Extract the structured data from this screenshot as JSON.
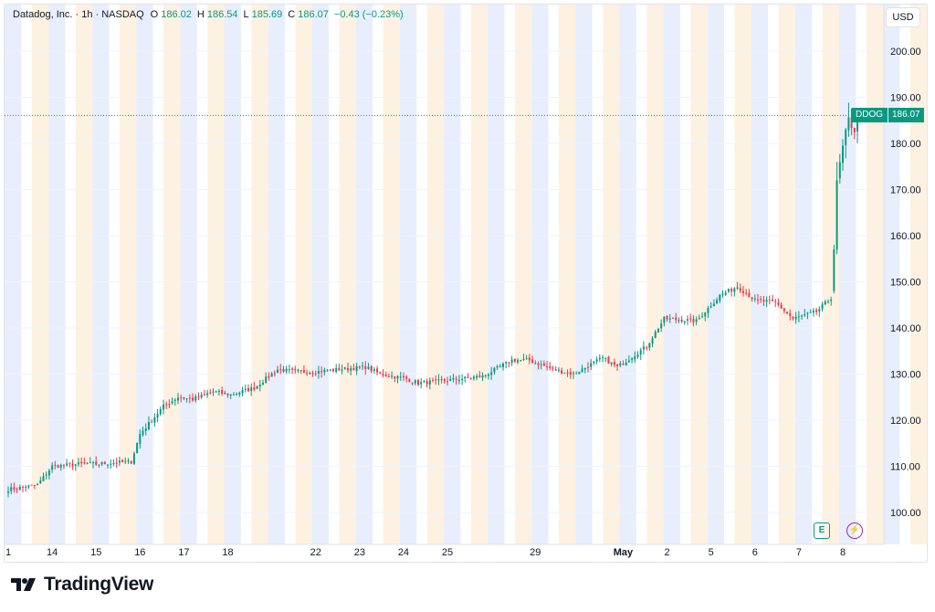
{
  "legend": {
    "title": "Datadog, Inc. · 1h · NASDAQ",
    "o_label": "O",
    "o_value": "186.02",
    "h_label": "H",
    "h_value": "186.54",
    "l_label": "L",
    "l_value": "185.69",
    "c_label": "C",
    "c_value": "186.07",
    "change": "−0.43 (−0.23%)"
  },
  "currency": "USD",
  "last_price": {
    "symbol": "DDOG",
    "value": "186.07",
    "price": 186.07
  },
  "markers": {
    "earnings_glyph": "E",
    "dividend_glyph": "⚡",
    "earnings_icon": "earnings-icon",
    "event_icon": "lightning-icon"
  },
  "brand": {
    "name": "TradingView",
    "logo_icon": "tradingview-logo-icon"
  },
  "colors": {
    "up": "#089981",
    "down": "#f23645",
    "pre_market_band": "#e8eefc",
    "post_market_band": "#fdf1e2",
    "grid": "#f0f3fa"
  },
  "chart_data": {
    "type": "candlestick",
    "title": "Datadog, Inc. · 1h · NASDAQ",
    "ylim": [
      93,
      210
    ],
    "y_ticks": [
      100,
      110,
      120,
      130,
      140,
      150,
      160,
      170,
      180,
      190,
      200
    ],
    "y_tick_labels": [
      "100.00",
      "110.00",
      "120.00",
      "130.00",
      "140.00",
      "150.00",
      "160.00",
      "170.00",
      "180.00",
      "190.00",
      "200.00"
    ],
    "x_labels": [
      "1",
      "14",
      "15",
      "16",
      "17",
      "18",
      "22",
      "23",
      "24",
      "25",
      "29",
      "May",
      "2",
      "5",
      "6",
      "7",
      "8"
    ],
    "x_label_index": [
      0,
      15,
      30,
      45,
      60,
      75,
      105,
      120,
      135,
      150,
      180,
      210,
      225,
      240,
      255,
      270,
      285
    ],
    "total_bars": 292,
    "grid": true,
    "anchor_closes": [
      [
        0,
        105
      ],
      [
        6,
        105.5
      ],
      [
        10,
        106
      ],
      [
        15,
        110
      ],
      [
        25,
        110.5
      ],
      [
        30,
        110.5
      ],
      [
        42,
        111
      ],
      [
        45,
        117
      ],
      [
        53,
        123
      ],
      [
        58,
        125
      ],
      [
        63,
        124.5
      ],
      [
        70,
        126.2
      ],
      [
        76,
        125.5
      ],
      [
        84,
        127
      ],
      [
        92,
        131
      ],
      [
        98,
        130.5
      ],
      [
        105,
        130.5
      ],
      [
        113,
        131
      ],
      [
        122,
        131.5
      ],
      [
        127,
        130
      ],
      [
        136,
        129
      ],
      [
        140,
        128
      ],
      [
        148,
        128.5
      ],
      [
        155,
        129
      ],
      [
        162,
        129.5
      ],
      [
        172,
        133
      ],
      [
        178,
        133
      ],
      [
        186,
        131
      ],
      [
        193,
        130
      ],
      [
        203,
        133.5
      ],
      [
        208,
        131.5
      ],
      [
        218,
        136
      ],
      [
        224,
        142
      ],
      [
        235,
        141.5
      ],
      [
        243,
        147
      ],
      [
        249,
        149
      ],
      [
        255,
        146
      ],
      [
        262,
        145.5
      ],
      [
        268,
        142
      ],
      [
        276,
        143.5
      ],
      [
        281,
        146.5
      ],
      [
        282,
        157
      ],
      [
        283,
        172
      ],
      [
        285,
        179
      ],
      [
        287,
        185
      ],
      [
        289,
        183
      ],
      [
        291,
        186.07
      ]
    ],
    "notable_bars": [
      {
        "index": 103,
        "high": 135.8,
        "close": 135
      },
      {
        "index": 287,
        "open": 186,
        "high": 198.6,
        "low": 178,
        "close": 185
      }
    ],
    "last_bar": {
      "open": 186.02,
      "high": 186.54,
      "low": 185.69,
      "close": 186.07
    }
  }
}
